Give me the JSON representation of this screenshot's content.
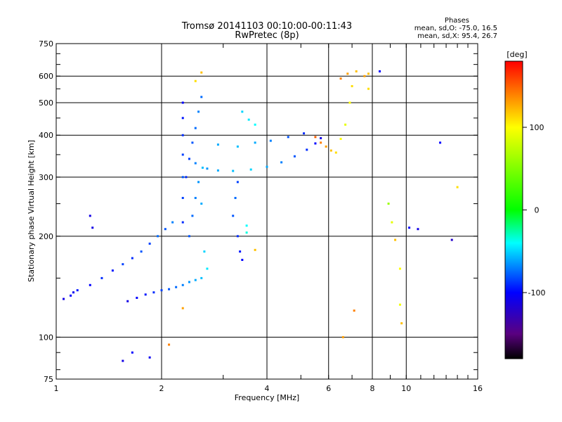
{
  "chart_data": {
    "type": "scatter",
    "title_line1": "Tromsø 20141103 00:10:00-00:11:43",
    "title_line2": "RwPretec (8p)",
    "stats": {
      "heading": "Phases",
      "line1": "mean, sd,O: -75.0, 16.5",
      "line2": "mean, sd,X:  95.4, 26.7"
    },
    "xlabel": "Frequency [MHz]",
    "ylabel": "Stationary phase Virtual Height [km]",
    "x_scale": "log",
    "y_scale": "log",
    "xlim": [
      1,
      16
    ],
    "ylim": [
      75,
      750
    ],
    "x_ticks": [
      1,
      2,
      4,
      6,
      8,
      10,
      16
    ],
    "x_tick_labels": [
      "1",
      "2",
      "4",
      "6",
      "8",
      "10",
      "16"
    ],
    "y_ticks": [
      75,
      100,
      200,
      300,
      400,
      500,
      600,
      750
    ],
    "y_tick_labels": [
      "75",
      "100",
      "200",
      "300",
      "400",
      "500",
      "600",
      "750"
    ],
    "grid": true,
    "colorbar": {
      "label": "[deg]",
      "range": [
        -180,
        180
      ],
      "ticks": [
        100,
        0,
        -100
      ],
      "tick_labels": [
        "100",
        "0",
        "-100"
      ],
      "stops": [
        {
          "value": -180,
          "color": "#000000"
        },
        {
          "value": -150,
          "color": "#5a0080"
        },
        {
          "value": -100,
          "color": "#0000ff"
        },
        {
          "value": -40,
          "color": "#00ffff"
        },
        {
          "value": 0,
          "color": "#00ff00"
        },
        {
          "value": 100,
          "color": "#ffff00"
        },
        {
          "value": 140,
          "color": "#ff8000"
        },
        {
          "value": 180,
          "color": "#ff0000"
        }
      ]
    },
    "series": [
      {
        "values": [
          [
            1.05,
            130,
            -110
          ],
          [
            1.1,
            133,
            -100
          ],
          [
            1.12,
            136,
            -105
          ],
          [
            1.15,
            138,
            -95
          ],
          [
            1.25,
            143,
            -100
          ],
          [
            1.35,
            150,
            -90
          ],
          [
            1.45,
            158,
            -95
          ],
          [
            1.55,
            165,
            -85
          ],
          [
            1.65,
            172,
            -90
          ],
          [
            1.75,
            180,
            -80
          ],
          [
            1.85,
            190,
            -85
          ],
          [
            1.95,
            200,
            -75
          ],
          [
            2.05,
            210,
            -80
          ],
          [
            2.15,
            220,
            -70
          ],
          [
            1.6,
            128,
            -110
          ],
          [
            1.7,
            131,
            -100
          ],
          [
            1.8,
            134,
            -95
          ],
          [
            1.9,
            136,
            -90
          ],
          [
            2.0,
            138,
            -85
          ],
          [
            2.1,
            139,
            -80
          ],
          [
            2.2,
            141,
            -75
          ],
          [
            2.3,
            143,
            -70
          ],
          [
            2.4,
            146,
            -65
          ],
          [
            2.5,
            148,
            -60
          ],
          [
            2.6,
            150,
            -55
          ],
          [
            2.3,
            220,
            -90
          ],
          [
            2.3,
            260,
            -85
          ],
          [
            2.3,
            300,
            -80
          ],
          [
            2.3,
            350,
            -85
          ],
          [
            2.3,
            400,
            -90
          ],
          [
            2.3,
            450,
            -95
          ],
          [
            2.3,
            500,
            -100
          ],
          [
            2.35,
            300,
            -90
          ],
          [
            2.4,
            340,
            -85
          ],
          [
            2.45,
            380,
            -80
          ],
          [
            2.5,
            420,
            -75
          ],
          [
            2.55,
            470,
            -70
          ],
          [
            2.6,
            520,
            -75
          ],
          [
            2.4,
            200,
            -80
          ],
          [
            2.45,
            230,
            -75
          ],
          [
            2.5,
            260,
            -70
          ],
          [
            2.55,
            290,
            -65
          ],
          [
            2.6,
            250,
            -60
          ],
          [
            2.62,
            320,
            -55
          ],
          [
            2.65,
            180,
            -50
          ],
          [
            2.7,
            160,
            -45
          ],
          [
            2.5,
            330,
            -70
          ],
          [
            2.7,
            318,
            -65
          ],
          [
            2.9,
            314,
            -60
          ],
          [
            3.2,
            313,
            -55
          ],
          [
            3.6,
            316,
            -50
          ],
          [
            4.0,
            322,
            -60
          ],
          [
            4.4,
            332,
            -70
          ],
          [
            4.8,
            346,
            -80
          ],
          [
            5.2,
            362,
            -90
          ],
          [
            5.5,
            378,
            -100
          ],
          [
            5.7,
            392,
            -110
          ],
          [
            2.9,
            375,
            -60
          ],
          [
            3.3,
            370,
            -55
          ],
          [
            3.7,
            380,
            -60
          ],
          [
            4.1,
            385,
            -70
          ],
          [
            4.6,
            395,
            -80
          ],
          [
            5.1,
            405,
            -90
          ],
          [
            3.2,
            230,
            -80
          ],
          [
            3.25,
            260,
            -75
          ],
          [
            3.3,
            290,
            -85
          ],
          [
            3.3,
            200,
            -90
          ],
          [
            3.35,
            180,
            -95
          ],
          [
            3.4,
            170,
            -100
          ],
          [
            3.4,
            470,
            -50
          ],
          [
            3.55,
            445,
            -45
          ],
          [
            3.7,
            430,
            -40
          ],
          [
            3.5,
            215,
            -40
          ],
          [
            3.5,
            205,
            -35
          ],
          [
            5.5,
            395,
            150
          ],
          [
            5.7,
            380,
            140
          ],
          [
            5.9,
            370,
            130
          ],
          [
            6.1,
            360,
            120
          ],
          [
            6.3,
            355,
            110
          ],
          [
            6.5,
            390,
            100
          ],
          [
            6.7,
            430,
            90
          ],
          [
            6.9,
            500,
            100
          ],
          [
            7.0,
            560,
            110
          ],
          [
            7.2,
            620,
            120
          ],
          [
            6.8,
            610,
            130
          ],
          [
            6.5,
            590,
            140
          ],
          [
            7.6,
            600,
            130
          ],
          [
            7.8,
            610,
            120
          ],
          [
            7.8,
            550,
            110
          ],
          [
            8.4,
            620,
            -100
          ],
          [
            8.9,
            250,
            60
          ],
          [
            9.1,
            220,
            90
          ],
          [
            9.3,
            195,
            120
          ],
          [
            9.6,
            160,
            100
          ],
          [
            9.6,
            125,
            95
          ],
          [
            9.7,
            110,
            120
          ],
          [
            10.2,
            212,
            -100
          ],
          [
            10.8,
            210,
            -110
          ],
          [
            13.5,
            195,
            -120
          ],
          [
            14.0,
            280,
            110
          ],
          [
            12.5,
            380,
            -100
          ],
          [
            1.25,
            230,
            -110
          ],
          [
            1.27,
            212,
            -110
          ],
          [
            1.55,
            85,
            -110
          ],
          [
            1.65,
            90,
            -100
          ],
          [
            1.85,
            87,
            -105
          ],
          [
            2.1,
            95,
            140
          ],
          [
            2.3,
            122,
            130
          ],
          [
            2.6,
            615,
            120
          ],
          [
            2.5,
            580,
            110
          ],
          [
            3.7,
            182,
            120
          ],
          [
            7.1,
            120,
            140
          ],
          [
            6.6,
            100,
            130
          ]
        ]
      }
    ]
  }
}
